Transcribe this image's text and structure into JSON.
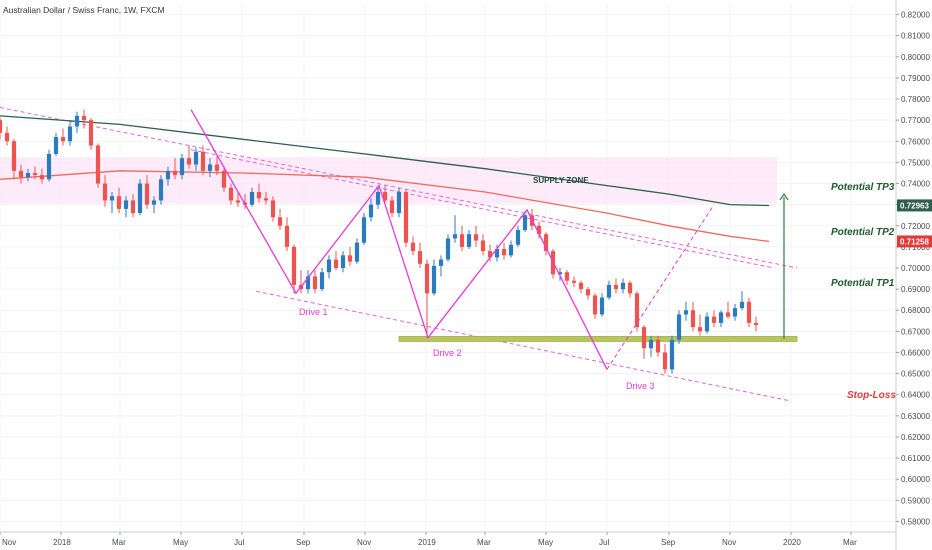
{
  "header": {
    "symbol_title": "Australian Dollar / Swiss Franc, 1W, FXCM"
  },
  "chart_data": {
    "type": "candlestick",
    "title": "Australian Dollar / Swiss Franc, 1W, FXCM",
    "y_axis": {
      "side": "right",
      "ylim": [
        0.575,
        0.825
      ],
      "ticks": [
        0.58,
        0.59,
        0.6,
        0.61,
        0.62,
        0.63,
        0.64,
        0.65,
        0.66,
        0.67,
        0.68,
        0.69,
        0.7,
        0.71,
        0.72,
        0.73,
        0.74,
        0.75,
        0.76,
        0.77,
        0.78,
        0.79,
        0.8,
        0.81,
        0.82
      ],
      "tick_labels": [
        "0.58000",
        "0.59000",
        "0.60000",
        "0.61000",
        "0.62000",
        "0.63000",
        "0.64000",
        "0.65000",
        "0.66000",
        "0.67000",
        "0.68000",
        "0.69000",
        "0.70000",
        "0.71000",
        "0.72000",
        "0.73000",
        "0.74000",
        "0.75000",
        "0.76000",
        "0.77000",
        "0.78000",
        "0.79000",
        "0.80000",
        "0.81000",
        "0.82000"
      ]
    },
    "x_axis": {
      "start": "2017-11-01",
      "end": "2020-04-15",
      "ticks": [
        {
          "date": "2017-11-01",
          "label": "Nov"
        },
        {
          "date": "2018-01-01",
          "label": "2018"
        },
        {
          "date": "2018-03-01",
          "label": "Mar"
        },
        {
          "date": "2018-05-01",
          "label": "May"
        },
        {
          "date": "2018-07-01",
          "label": "Jul"
        },
        {
          "date": "2018-09-01",
          "label": "Sep"
        },
        {
          "date": "2018-11-01",
          "label": "Nov"
        },
        {
          "date": "2019-01-01",
          "label": "2019"
        },
        {
          "date": "2019-03-01",
          "label": "Mar"
        },
        {
          "date": "2019-05-01",
          "label": "May"
        },
        {
          "date": "2019-07-01",
          "label": "Jul"
        },
        {
          "date": "2019-09-01",
          "label": "Sep"
        },
        {
          "date": "2019-11-01",
          "label": "Nov"
        },
        {
          "date": "2020-01-01",
          "label": "2020"
        },
        {
          "date": "2020-03-01",
          "label": "Mar"
        }
      ]
    },
    "price_labels": [
      {
        "value": 0.72963,
        "label": "0.72963",
        "color": "#2e5e4e"
      },
      {
        "value": 0.71258,
        "label": "0.71258",
        "color": "#e03b3b"
      }
    ],
    "colors": {
      "up": "#2b7bbf",
      "down": "#ef5350",
      "pattern": "#e83ad8",
      "channel": "#e066d8",
      "ma_slow": "#2e5e4e",
      "ma_fast": "#ef6a5a",
      "supply_zone": "#fde4f8",
      "support": "#b8c75a",
      "tp_text": "#1f5a2e",
      "sl_text": "#e23b3b"
    },
    "annotations": {
      "supply_zone": "SUPPLY ZONE",
      "drive_1": "Drive 1",
      "drive_2": "Drive 2",
      "drive_3": "Drive 3",
      "tp3": "Potential TP3",
      "tp2": "Potential TP2",
      "tp1": "Potential TP1",
      "stop_loss": "Stop-Loss"
    },
    "supply_zone_range": [
      0.7305,
      0.7525
    ],
    "support_level": 0.6664,
    "drive_pattern": [
      {
        "date": "2018-05-11",
        "value": 0.775
      },
      {
        "date": "2018-08-24",
        "value": 0.688
      },
      {
        "date": "2018-11-15",
        "value": 0.739
      },
      {
        "date": "2019-01-03",
        "value": 0.667
      },
      {
        "date": "2019-04-12",
        "value": 0.7275
      },
      {
        "date": "2019-07-01",
        "value": 0.652
      },
      {
        "date": "2019-10-16",
        "value": 0.73
      }
    ],
    "channel_lines": [
      {
        "from": {
          "date": "2017-11-01",
          "value": 0.776
        },
        "to": {
          "date": "2020-01-07",
          "value": 0.7
        }
      },
      {
        "from": {
          "date": "2018-05-11",
          "value": 0.756
        },
        "to": {
          "date": "2019-12-15",
          "value": 0.7
        }
      },
      {
        "from": {
          "date": "2018-07-15",
          "value": 0.689
        },
        "to": {
          "date": "2020-01-01",
          "value": 0.637
        }
      }
    ],
    "moving_averages": [
      {
        "name": "",
        "color_key": "ma_slow",
        "points": [
          [
            "2017-11-01",
            0.772
          ],
          [
            "2018-03-01",
            0.768
          ],
          [
            "2018-07-01",
            0.761
          ],
          [
            "2018-11-01",
            0.754
          ],
          [
            "2019-03-01",
            0.747
          ],
          [
            "2019-07-01",
            0.739
          ],
          [
            "2019-09-01",
            0.735
          ],
          [
            "2019-11-01",
            0.73
          ],
          [
            "2019-12-10",
            0.7296
          ]
        ]
      },
      {
        "name": "",
        "color_key": "ma_fast",
        "points": [
          [
            "2017-11-01",
            0.742
          ],
          [
            "2018-03-01",
            0.746
          ],
          [
            "2018-07-01",
            0.745
          ],
          [
            "2018-11-01",
            0.743
          ],
          [
            "2019-03-01",
            0.736
          ],
          [
            "2019-07-01",
            0.726
          ],
          [
            "2019-09-01",
            0.72
          ],
          [
            "2019-11-01",
            0.715
          ],
          [
            "2019-12-10",
            0.7126
          ]
        ]
      }
    ],
    "target_arrow": {
      "date": "2019-12-25",
      "from": 0.6665,
      "to": 0.735
    },
    "candles": [
      {
        "d": "2017-11-01",
        "o": 0.77,
        "h": 0.7712,
        "l": 0.7608,
        "c": 0.764
      },
      {
        "d": "2017-11-08",
        "o": 0.764,
        "h": 0.767,
        "l": 0.758,
        "c": 0.76
      },
      {
        "d": "2017-11-15",
        "o": 0.76,
        "h": 0.7612,
        "l": 0.742,
        "c": 0.746
      },
      {
        "d": "2017-11-22",
        "o": 0.746,
        "h": 0.749,
        "l": 0.74,
        "c": 0.743
      },
      {
        "d": "2017-11-29",
        "o": 0.743,
        "h": 0.747,
        "l": 0.741,
        "c": 0.745
      },
      {
        "d": "2017-12-06",
        "o": 0.745,
        "h": 0.748,
        "l": 0.742,
        "c": 0.744
      },
      {
        "d": "2017-12-13",
        "o": 0.744,
        "h": 0.747,
        "l": 0.74,
        "c": 0.742
      },
      {
        "d": "2017-12-20",
        "o": 0.742,
        "h": 0.756,
        "l": 0.741,
        "c": 0.754
      },
      {
        "d": "2017-12-27",
        "o": 0.754,
        "h": 0.764,
        "l": 0.753,
        "c": 0.762
      },
      {
        "d": "2018-01-03",
        "o": 0.762,
        "h": 0.766,
        "l": 0.758,
        "c": 0.76
      },
      {
        "d": "2018-01-10",
        "o": 0.76,
        "h": 0.769,
        "l": 0.758,
        "c": 0.767
      },
      {
        "d": "2018-01-17",
        "o": 0.767,
        "h": 0.774,
        "l": 0.764,
        "c": 0.772
      },
      {
        "d": "2018-01-24",
        "o": 0.772,
        "h": 0.775,
        "l": 0.766,
        "c": 0.77
      },
      {
        "d": "2018-01-31",
        "o": 0.77,
        "h": 0.771,
        "l": 0.756,
        "c": 0.758
      },
      {
        "d": "2018-02-07",
        "o": 0.758,
        "h": 0.759,
        "l": 0.738,
        "c": 0.74
      },
      {
        "d": "2018-02-14",
        "o": 0.74,
        "h": 0.744,
        "l": 0.729,
        "c": 0.732
      },
      {
        "d": "2018-02-21",
        "o": 0.732,
        "h": 0.736,
        "l": 0.726,
        "c": 0.734
      },
      {
        "d": "2018-02-28",
        "o": 0.734,
        "h": 0.738,
        "l": 0.726,
        "c": 0.728
      },
      {
        "d": "2018-03-07",
        "o": 0.728,
        "h": 0.734,
        "l": 0.724,
        "c": 0.732
      },
      {
        "d": "2018-03-14",
        "o": 0.732,
        "h": 0.735,
        "l": 0.724,
        "c": 0.726
      },
      {
        "d": "2018-03-21",
        "o": 0.726,
        "h": 0.742,
        "l": 0.725,
        "c": 0.74
      },
      {
        "d": "2018-03-28",
        "o": 0.74,
        "h": 0.744,
        "l": 0.728,
        "c": 0.73
      },
      {
        "d": "2018-04-04",
        "o": 0.73,
        "h": 0.734,
        "l": 0.726,
        "c": 0.732
      },
      {
        "d": "2018-04-11",
        "o": 0.732,
        "h": 0.744,
        "l": 0.73,
        "c": 0.742
      },
      {
        "d": "2018-04-18",
        "o": 0.742,
        "h": 0.748,
        "l": 0.739,
        "c": 0.746
      },
      {
        "d": "2018-04-25",
        "o": 0.746,
        "h": 0.752,
        "l": 0.742,
        "c": 0.744
      },
      {
        "d": "2018-05-02",
        "o": 0.744,
        "h": 0.754,
        "l": 0.742,
        "c": 0.752
      },
      {
        "d": "2018-05-09",
        "o": 0.752,
        "h": 0.758,
        "l": 0.747,
        "c": 0.749
      },
      {
        "d": "2018-05-16",
        "o": 0.749,
        "h": 0.757,
        "l": 0.746,
        "c": 0.755
      },
      {
        "d": "2018-05-23",
        "o": 0.755,
        "h": 0.758,
        "l": 0.744,
        "c": 0.746
      },
      {
        "d": "2018-05-30",
        "o": 0.746,
        "h": 0.752,
        "l": 0.743,
        "c": 0.749
      },
      {
        "d": "2018-06-06",
        "o": 0.749,
        "h": 0.753,
        "l": 0.744,
        "c": 0.746
      },
      {
        "d": "2018-06-13",
        "o": 0.746,
        "h": 0.748,
        "l": 0.736,
        "c": 0.738
      },
      {
        "d": "2018-06-20",
        "o": 0.738,
        "h": 0.74,
        "l": 0.73,
        "c": 0.732
      },
      {
        "d": "2018-06-27",
        "o": 0.732,
        "h": 0.736,
        "l": 0.729,
        "c": 0.731
      },
      {
        "d": "2018-07-04",
        "o": 0.731,
        "h": 0.735,
        "l": 0.728,
        "c": 0.73
      },
      {
        "d": "2018-07-11",
        "o": 0.73,
        "h": 0.738,
        "l": 0.729,
        "c": 0.736
      },
      {
        "d": "2018-07-18",
        "o": 0.736,
        "h": 0.74,
        "l": 0.731,
        "c": 0.733
      },
      {
        "d": "2018-07-25",
        "o": 0.733,
        "h": 0.736,
        "l": 0.73,
        "c": 0.732
      },
      {
        "d": "2018-08-01",
        "o": 0.732,
        "h": 0.734,
        "l": 0.722,
        "c": 0.724
      },
      {
        "d": "2018-08-08",
        "o": 0.724,
        "h": 0.728,
        "l": 0.718,
        "c": 0.72
      },
      {
        "d": "2018-08-15",
        "o": 0.72,
        "h": 0.724,
        "l": 0.708,
        "c": 0.71
      },
      {
        "d": "2018-08-22",
        "o": 0.71,
        "h": 0.711,
        "l": 0.688,
        "c": 0.692
      },
      {
        "d": "2018-08-29",
        "o": 0.692,
        "h": 0.699,
        "l": 0.688,
        "c": 0.69
      },
      {
        "d": "2018-09-05",
        "o": 0.69,
        "h": 0.699,
        "l": 0.688,
        "c": 0.696
      },
      {
        "d": "2018-09-12",
        "o": 0.696,
        "h": 0.699,
        "l": 0.688,
        "c": 0.69
      },
      {
        "d": "2018-09-19",
        "o": 0.69,
        "h": 0.7,
        "l": 0.689,
        "c": 0.698
      },
      {
        "d": "2018-09-26",
        "o": 0.698,
        "h": 0.706,
        "l": 0.695,
        "c": 0.704
      },
      {
        "d": "2018-10-03",
        "o": 0.704,
        "h": 0.708,
        "l": 0.699,
        "c": 0.7
      },
      {
        "d": "2018-10-10",
        "o": 0.7,
        "h": 0.708,
        "l": 0.698,
        "c": 0.706
      },
      {
        "d": "2018-10-17",
        "o": 0.706,
        "h": 0.71,
        "l": 0.701,
        "c": 0.703
      },
      {
        "d": "2018-10-24",
        "o": 0.703,
        "h": 0.714,
        "l": 0.702,
        "c": 0.712
      },
      {
        "d": "2018-10-31",
        "o": 0.712,
        "h": 0.726,
        "l": 0.711,
        "c": 0.724
      },
      {
        "d": "2018-11-07",
        "o": 0.724,
        "h": 0.733,
        "l": 0.722,
        "c": 0.73
      },
      {
        "d": "2018-11-14",
        "o": 0.73,
        "h": 0.738,
        "l": 0.728,
        "c": 0.736
      },
      {
        "d": "2018-11-21",
        "o": 0.736,
        "h": 0.739,
        "l": 0.73,
        "c": 0.732
      },
      {
        "d": "2018-11-28",
        "o": 0.732,
        "h": 0.734,
        "l": 0.724,
        "c": 0.726
      },
      {
        "d": "2018-12-05",
        "o": 0.726,
        "h": 0.738,
        "l": 0.724,
        "c": 0.736
      },
      {
        "d": "2018-12-12",
        "o": 0.736,
        "h": 0.737,
        "l": 0.71,
        "c": 0.712
      },
      {
        "d": "2018-12-19",
        "o": 0.712,
        "h": 0.715,
        "l": 0.706,
        "c": 0.708
      },
      {
        "d": "2018-12-26",
        "o": 0.708,
        "h": 0.712,
        "l": 0.7,
        "c": 0.702
      },
      {
        "d": "2019-01-02",
        "o": 0.702,
        "h": 0.704,
        "l": 0.667,
        "c": 0.688
      },
      {
        "d": "2019-01-09",
        "o": 0.688,
        "h": 0.704,
        "l": 0.687,
        "c": 0.701
      },
      {
        "d": "2019-01-16",
        "o": 0.701,
        "h": 0.706,
        "l": 0.696,
        "c": 0.704
      },
      {
        "d": "2019-01-23",
        "o": 0.704,
        "h": 0.716,
        "l": 0.703,
        "c": 0.714
      },
      {
        "d": "2019-01-30",
        "o": 0.714,
        "h": 0.725,
        "l": 0.712,
        "c": 0.716
      },
      {
        "d": "2019-02-06",
        "o": 0.716,
        "h": 0.72,
        "l": 0.708,
        "c": 0.71
      },
      {
        "d": "2019-02-13",
        "o": 0.71,
        "h": 0.718,
        "l": 0.709,
        "c": 0.716
      },
      {
        "d": "2019-02-20",
        "o": 0.716,
        "h": 0.72,
        "l": 0.71,
        "c": 0.713
      },
      {
        "d": "2019-02-27",
        "o": 0.713,
        "h": 0.716,
        "l": 0.706,
        "c": 0.708
      },
      {
        "d": "2019-03-06",
        "o": 0.708,
        "h": 0.711,
        "l": 0.703,
        "c": 0.705
      },
      {
        "d": "2019-03-13",
        "o": 0.705,
        "h": 0.711,
        "l": 0.703,
        "c": 0.709
      },
      {
        "d": "2019-03-20",
        "o": 0.709,
        "h": 0.712,
        "l": 0.704,
        "c": 0.706
      },
      {
        "d": "2019-03-27",
        "o": 0.706,
        "h": 0.713,
        "l": 0.705,
        "c": 0.711
      },
      {
        "d": "2019-04-03",
        "o": 0.711,
        "h": 0.72,
        "l": 0.71,
        "c": 0.718
      },
      {
        "d": "2019-04-10",
        "o": 0.718,
        "h": 0.727,
        "l": 0.717,
        "c": 0.725
      },
      {
        "d": "2019-04-17",
        "o": 0.725,
        "h": 0.728,
        "l": 0.718,
        "c": 0.72
      },
      {
        "d": "2019-04-24",
        "o": 0.72,
        "h": 0.722,
        "l": 0.714,
        "c": 0.716
      },
      {
        "d": "2019-05-01",
        "o": 0.716,
        "h": 0.717,
        "l": 0.706,
        "c": 0.708
      },
      {
        "d": "2019-05-08",
        "o": 0.708,
        "h": 0.709,
        "l": 0.695,
        "c": 0.697
      },
      {
        "d": "2019-05-15",
        "o": 0.697,
        "h": 0.7,
        "l": 0.694,
        "c": 0.698
      },
      {
        "d": "2019-05-22",
        "o": 0.698,
        "h": 0.699,
        "l": 0.692,
        "c": 0.694
      },
      {
        "d": "2019-05-29",
        "o": 0.694,
        "h": 0.696,
        "l": 0.691,
        "c": 0.693
      },
      {
        "d": "2019-06-05",
        "o": 0.693,
        "h": 0.694,
        "l": 0.688,
        "c": 0.69
      },
      {
        "d": "2019-06-12",
        "o": 0.69,
        "h": 0.691,
        "l": 0.685,
        "c": 0.687
      },
      {
        "d": "2019-06-19",
        "o": 0.687,
        "h": 0.688,
        "l": 0.676,
        "c": 0.678
      },
      {
        "d": "2019-06-26",
        "o": 0.678,
        "h": 0.688,
        "l": 0.677,
        "c": 0.686
      },
      {
        "d": "2019-07-03",
        "o": 0.686,
        "h": 0.694,
        "l": 0.685,
        "c": 0.692
      },
      {
        "d": "2019-07-10",
        "o": 0.692,
        "h": 0.695,
        "l": 0.688,
        "c": 0.69
      },
      {
        "d": "2019-07-17",
        "o": 0.69,
        "h": 0.695,
        "l": 0.688,
        "c": 0.693
      },
      {
        "d": "2019-07-24",
        "o": 0.693,
        "h": 0.694,
        "l": 0.686,
        "c": 0.688
      },
      {
        "d": "2019-07-31",
        "o": 0.688,
        "h": 0.689,
        "l": 0.67,
        "c": 0.672
      },
      {
        "d": "2019-08-07",
        "o": 0.672,
        "h": 0.673,
        "l": 0.657,
        "c": 0.662
      },
      {
        "d": "2019-08-14",
        "o": 0.662,
        "h": 0.668,
        "l": 0.658,
        "c": 0.666
      },
      {
        "d": "2019-08-21",
        "o": 0.666,
        "h": 0.668,
        "l": 0.658,
        "c": 0.66
      },
      {
        "d": "2019-08-28",
        "o": 0.66,
        "h": 0.664,
        "l": 0.65,
        "c": 0.652
      },
      {
        "d": "2019-09-04",
        "o": 0.652,
        "h": 0.668,
        "l": 0.65,
        "c": 0.666
      },
      {
        "d": "2019-09-11",
        "o": 0.666,
        "h": 0.68,
        "l": 0.664,
        "c": 0.678
      },
      {
        "d": "2019-09-18",
        "o": 0.678,
        "h": 0.684,
        "l": 0.675,
        "c": 0.68
      },
      {
        "d": "2019-09-25",
        "o": 0.68,
        "h": 0.684,
        "l": 0.67,
        "c": 0.672
      },
      {
        "d": "2019-10-02",
        "o": 0.672,
        "h": 0.678,
        "l": 0.668,
        "c": 0.67
      },
      {
        "d": "2019-10-09",
        "o": 0.67,
        "h": 0.679,
        "l": 0.669,
        "c": 0.677
      },
      {
        "d": "2019-10-16",
        "o": 0.677,
        "h": 0.68,
        "l": 0.672,
        "c": 0.674
      },
      {
        "d": "2019-10-23",
        "o": 0.674,
        "h": 0.68,
        "l": 0.672,
        "c": 0.679
      },
      {
        "d": "2019-10-30",
        "o": 0.679,
        "h": 0.684,
        "l": 0.676,
        "c": 0.677
      },
      {
        "d": "2019-11-06",
        "o": 0.677,
        "h": 0.683,
        "l": 0.675,
        "c": 0.681
      },
      {
        "d": "2019-11-13",
        "o": 0.681,
        "h": 0.689,
        "l": 0.68,
        "c": 0.684
      },
      {
        "d": "2019-11-20",
        "o": 0.684,
        "h": 0.686,
        "l": 0.672,
        "c": 0.674
      },
      {
        "d": "2019-11-27",
        "o": 0.674,
        "h": 0.677,
        "l": 0.67,
        "c": 0.673
      }
    ]
  }
}
